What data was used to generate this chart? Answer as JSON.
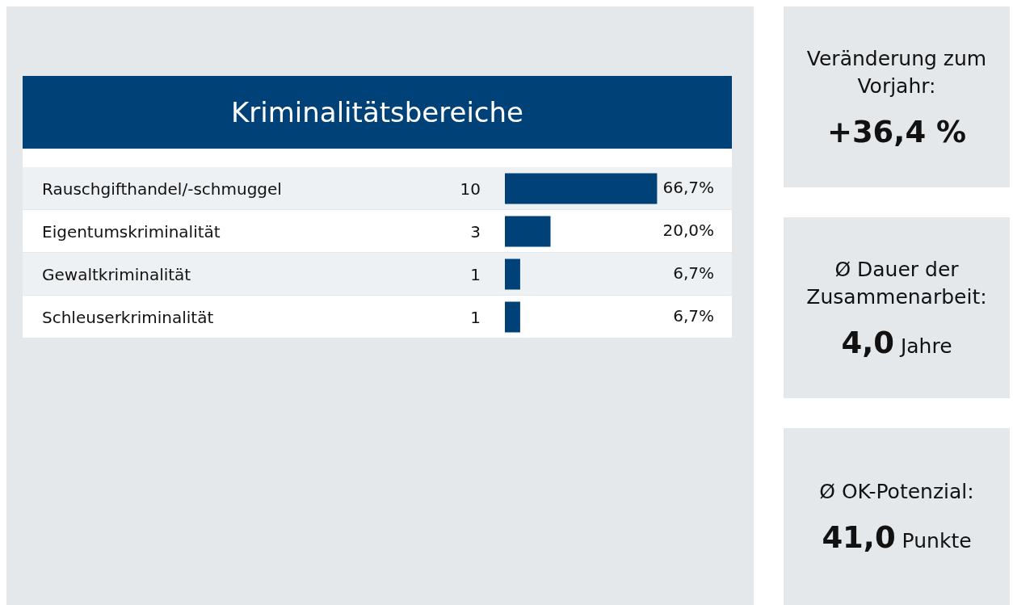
{
  "chart_data": [
    {
      "type": "bar",
      "orientation": "horizontal",
      "tick_labels": "y",
      "title": "Kriminalitätsbereiche",
      "categories": [
        "Rauschgifthandel/-schmuggel",
        "Eigentumskriminalität",
        "Gewaltkriminalität",
        "Schleuserkriminalität"
      ],
      "values": [
        66.7,
        20.0,
        6.7,
        6.7
      ],
      "color": "#004278",
      "value_labels": [
        "66,7%",
        "20,0%",
        "6,7%",
        "6,7%"
      ],
      "annotations": [
        "10",
        "3",
        "1",
        "1"
      ]
    },
    {
      "type": "other",
      "title": "Veränderung zum Vorjahr:",
      "annotations": [
        "+36,4 %"
      ]
    },
    {
      "type": "other",
      "title": "Ø Dauer der Zusammenarbeit:",
      "annotations": [
        "4,0",
        "Jahre"
      ]
    },
    {
      "type": "other",
      "title": "Ø OK-Potenzial:",
      "annotations": [
        "41,0",
        "Punkte"
      ]
    }
  ]
}
